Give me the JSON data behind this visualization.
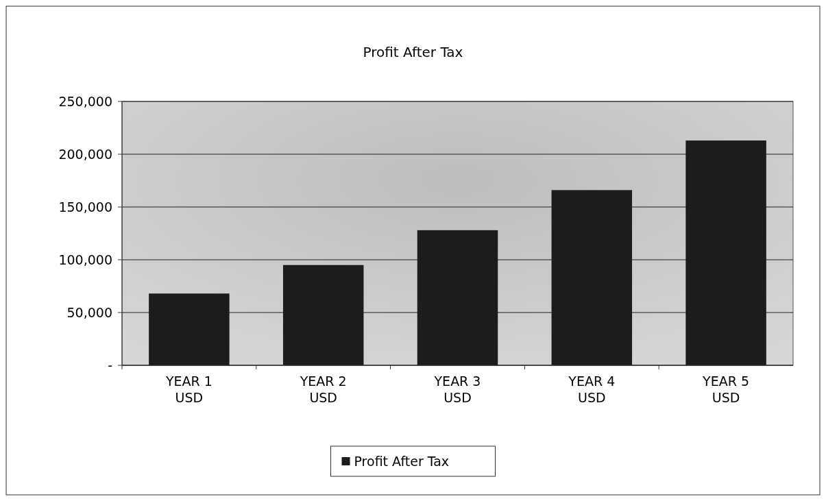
{
  "chart_data": {
    "type": "bar",
    "title": "Profit After Tax",
    "categories": [
      "YEAR 1\nUSD",
      "YEAR 2\nUSD",
      "YEAR 3\nUSD",
      "YEAR 4\nUSD",
      "YEAR 5\nUSD"
    ],
    "series": [
      {
        "name": "Profit After Tax",
        "color": "#1c1c1c",
        "values": [
          68000,
          95000,
          128000,
          166000,
          213000
        ]
      }
    ],
    "ylim": [
      0,
      250000
    ],
    "yticks": [
      {
        "value": 0,
        "label": "-"
      },
      {
        "value": 50000,
        "label": "50,000"
      },
      {
        "value": 100000,
        "label": "100,000"
      },
      {
        "value": 150000,
        "label": "150,000"
      },
      {
        "value": 200000,
        "label": "200,000"
      },
      {
        "value": 250000,
        "label": "250,000"
      }
    ],
    "grid": "y",
    "legend": "bottom"
  }
}
